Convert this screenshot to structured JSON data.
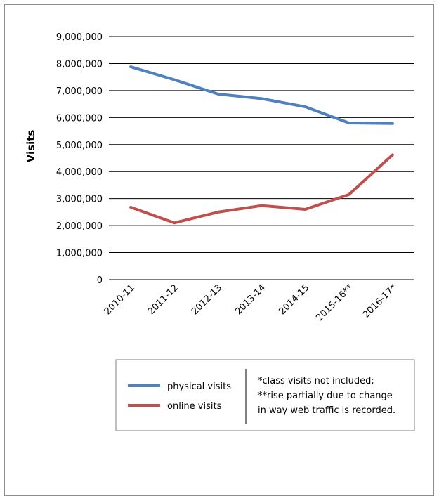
{
  "chart_data": {
    "type": "line",
    "title": "",
    "xlabel": "",
    "ylabel": "Visits",
    "categories": [
      "2010-11",
      "2011-12",
      "2012-13",
      "2013-14",
      "2014-15",
      "2015-16**",
      "2016-17*"
    ],
    "ylim": [
      0,
      9000000
    ],
    "yticks": [
      0,
      1000000,
      2000000,
      3000000,
      4000000,
      5000000,
      6000000,
      7000000,
      8000000,
      9000000
    ],
    "ytick_labels": [
      "0",
      "1,000,000",
      "2,000,000",
      "3,000,000",
      "4,000,000",
      "5,000,000",
      "6,000,000",
      "7,000,000",
      "8,000,000",
      "9,000,000"
    ],
    "grid": "horizontal",
    "legend_position": "bottom",
    "series": [
      {
        "name": "physical visits",
        "color": "#4f81bd",
        "values": [
          7880000,
          7400000,
          6870000,
          6700000,
          6400000,
          5800000,
          5780000
        ]
      },
      {
        "name": "online visits",
        "color": "#c0504d",
        "values": [
          2680000,
          2100000,
          2500000,
          2740000,
          2600000,
          3150000,
          4620000
        ]
      }
    ],
    "notes": [
      "*class visits not included;",
      "**rise partially due to change",
      "in way web traffic is recorded."
    ]
  }
}
